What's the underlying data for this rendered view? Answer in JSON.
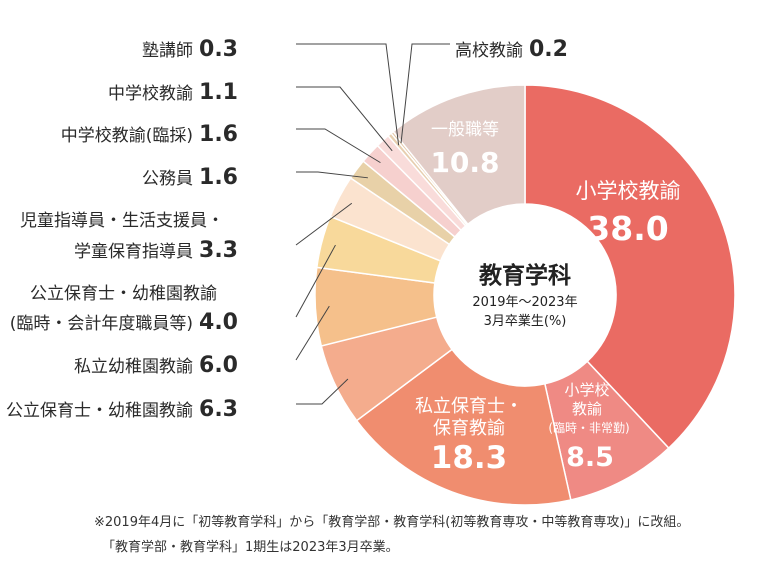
{
  "chart_data": {
    "type": "pie",
    "center": {
      "title": "教育学科",
      "subtitle_line1": "2019年〜2023年",
      "subtitle_line2": "3月卒業生(%)"
    },
    "slices": [
      {
        "label": "小学校教諭",
        "value": 38.0,
        "value_text": "38.0",
        "color": "#EA6B63"
      },
      {
        "label": "小学校教諭(臨時・非常勤)",
        "value": 8.5,
        "value_text": "8.5",
        "color": "#EF8A84"
      },
      {
        "label": "私立保育士・保育教諭",
        "value": 18.3,
        "value_text": "18.3",
        "color": "#F08D6F"
      },
      {
        "label": "公立保育士・幼稚園教諭",
        "value": 6.3,
        "value_text": "6.3",
        "color": "#F4AC8D"
      },
      {
        "label": "私立幼稚園教諭",
        "value": 6.0,
        "value_text": "6.0",
        "color": "#F5C08B"
      },
      {
        "label": "公立保育士・幼稚園教諭(臨時・会計年度職員等)",
        "value": 4.0,
        "value_text": "4.0",
        "color": "#F8D99B"
      },
      {
        "label": "児童指導員・生活支援員・学童保育指導員",
        "value": 3.3,
        "value_text": "3.3",
        "color": "#FBE3CF"
      },
      {
        "label": "公務員",
        "value": 1.6,
        "value_text": "1.6",
        "color": "#E8D1A8"
      },
      {
        "label": "中学校教諭(臨採)",
        "value": 1.6,
        "value_text": "1.6",
        "color": "#F6D0CE"
      },
      {
        "label": "中学校教諭",
        "value": 1.1,
        "value_text": "1.1",
        "color": "#F9DCDA"
      },
      {
        "label": "塾講師",
        "value": 0.3,
        "value_text": "0.3",
        "color": "#E7CFB0"
      },
      {
        "label": "高校教諭",
        "value": 0.2,
        "value_text": "0.2",
        "color": "#E3C6A6"
      },
      {
        "label": "一般職等",
        "value": 10.8,
        "value_text": "10.8",
        "color": "#E2CDC8"
      }
    ],
    "inside_labels": {
      "elem": {
        "line1": "小学校教諭",
        "value": "38.0"
      },
      "elem_temp": {
        "line1": "小学校",
        "line2": "教諭",
        "line3": "(臨時・非常勤)",
        "value": "8.5"
      },
      "priv_nursery": {
        "line1": "私立保育士・",
        "line2": "保育教諭",
        "value": "18.3"
      },
      "general": {
        "line1": "一般職等",
        "value": "10.8"
      }
    },
    "outside_labels": {
      "juku": {
        "label": "塾講師",
        "value": "0.3"
      },
      "high": {
        "label": "高校教諭",
        "value": "0.2"
      },
      "jhs": {
        "label": "中学校教諭",
        "value": "1.1"
      },
      "jhs_temp": {
        "label": "中学校教諭(臨採)",
        "value": "1.6"
      },
      "civil": {
        "label": "公務員",
        "value": "1.6"
      },
      "child_line1": "児童指導員・生活支援員・",
      "child_line2": {
        "label": "学童保育指導員",
        "value": "3.3"
      },
      "pub_temp_line1": "公立保育士・幼稚園教諭",
      "pub_temp_line2": {
        "label": "(臨時・会計年度職員等)",
        "value": "4.0"
      },
      "priv_kinder": {
        "label": "私立幼稚園教諭",
        "value": "6.0"
      },
      "pub": {
        "label": "公立保育士・幼稚園教諭",
        "value": "6.3"
      }
    },
    "footnote_line1": "※2019年4月に「初等教育学科」から「教育学部・教育学科(初等教育専攻・中等教育専攻)」に改組。",
    "footnote_line2": "「教育学部・教育学科」1期生は2023年3月卒業。"
  }
}
